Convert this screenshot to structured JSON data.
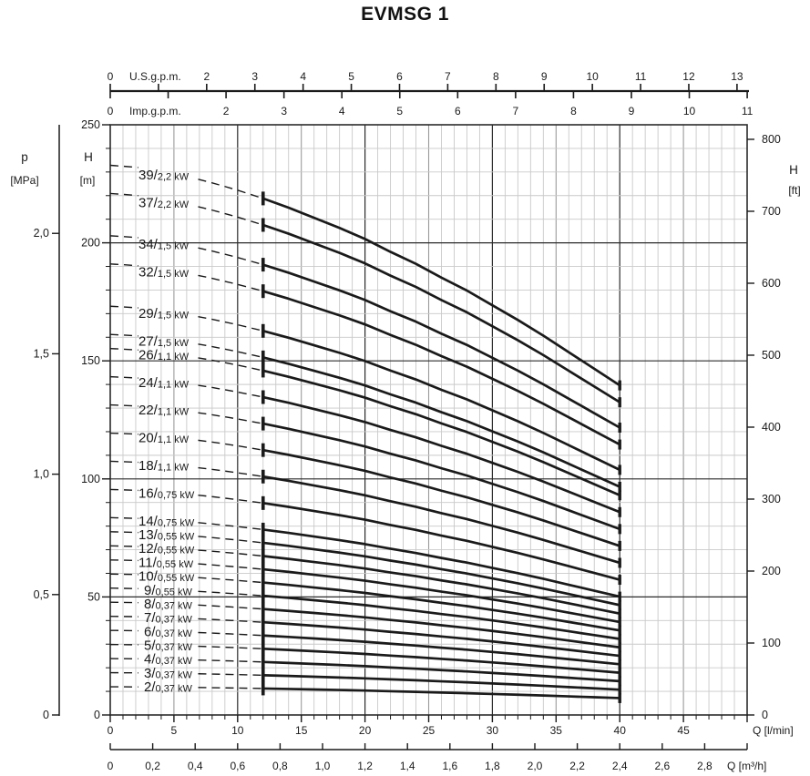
{
  "title": "EVMSG 1",
  "colors": {
    "ink": "#1a1a1a",
    "grid_minor": "#c9c9c9",
    "grid_mid": "#9a9a9a",
    "grid_major": "#2b2b2b",
    "background": "#ffffff"
  },
  "chart_data": {
    "type": "line",
    "title": "EVMSG 1",
    "description": "Multistage pump performance curves: head H versus flow Q for 25 pump sizes",
    "x_range_lmin": [
      0,
      50
    ],
    "y_range_m": [
      0,
      250
    ],
    "q_solid_range_lmin": [
      12,
      40
    ],
    "grid": {
      "x_minor_step": 1,
      "x_mid_step": 5,
      "x_major_step": 10,
      "y_minor_step": 10,
      "y_major_step": 50
    },
    "per_stage_head": {
      "q_lmin": [
        0,
        2,
        4,
        6,
        8,
        10,
        12,
        14,
        16,
        18,
        20,
        22,
        24,
        26,
        28,
        30,
        32,
        34,
        36,
        38,
        40
      ],
      "h_m": [
        5.97,
        5.95,
        5.91,
        5.85,
        5.78,
        5.7,
        5.61,
        5.51,
        5.4,
        5.29,
        5.17,
        5.03,
        4.9,
        4.75,
        4.61,
        4.45,
        4.29,
        4.12,
        3.94,
        3.76,
        3.58
      ]
    },
    "series": [
      {
        "stages": 39,
        "power": "2,2 kW"
      },
      {
        "stages": 37,
        "power": "2,2 kW"
      },
      {
        "stages": 34,
        "power": "1,5 kW"
      },
      {
        "stages": 32,
        "power": "1,5 kW"
      },
      {
        "stages": 29,
        "power": "1,5 kW"
      },
      {
        "stages": 27,
        "power": "1,5 kW"
      },
      {
        "stages": 26,
        "power": "1,1 kW"
      },
      {
        "stages": 24,
        "power": "1,1 kW"
      },
      {
        "stages": 22,
        "power": "1,1 kW"
      },
      {
        "stages": 20,
        "power": "1,1 kW"
      },
      {
        "stages": 18,
        "power": "1,1 kW"
      },
      {
        "stages": 16,
        "power": "0,75 kW"
      },
      {
        "stages": 14,
        "power": "0,75 kW"
      },
      {
        "stages": 13,
        "power": "0,55 kW"
      },
      {
        "stages": 12,
        "power": "0,55 kW"
      },
      {
        "stages": 11,
        "power": "0,55 kW"
      },
      {
        "stages": 10,
        "power": "0,55 kW"
      },
      {
        "stages": 9,
        "power": "0,55 kW"
      },
      {
        "stages": 8,
        "power": "0,37 kW"
      },
      {
        "stages": 7,
        "power": "0,37 kW"
      },
      {
        "stages": 6,
        "power": "0,37 kW"
      },
      {
        "stages": 5,
        "power": "0,37 kW"
      },
      {
        "stages": 4,
        "power": "0,37 kW"
      },
      {
        "stages": 3,
        "power": "0,37 kW"
      },
      {
        "stages": 2,
        "power": "0,37 kW"
      }
    ],
    "axes": {
      "us_gpm": {
        "name": "U.S.g.p.m.",
        "lmin_per_unit": 3.785,
        "ticks": [
          {
            "v": 0,
            "t": "0"
          },
          {
            "v": 1,
            "t": ""
          },
          {
            "v": 2,
            "t": "2"
          },
          {
            "v": 3,
            "t": "3"
          },
          {
            "v": 4,
            "t": "4"
          },
          {
            "v": 5,
            "t": "5"
          },
          {
            "v": 6,
            "t": "6"
          },
          {
            "v": 7,
            "t": "7"
          },
          {
            "v": 8,
            "t": "8"
          },
          {
            "v": 9,
            "t": "9"
          },
          {
            "v": 10,
            "t": "10"
          },
          {
            "v": 11,
            "t": "11"
          },
          {
            "v": 12,
            "t": "12"
          },
          {
            "v": 13,
            "t": "13"
          }
        ]
      },
      "imp_gpm": {
        "name": "Imp.g.p.m.",
        "lmin_per_unit": 4.546,
        "ticks": [
          {
            "v": 0,
            "t": "0"
          },
          {
            "v": 1,
            "t": ""
          },
          {
            "v": 2,
            "t": "2"
          },
          {
            "v": 3,
            "t": "3"
          },
          {
            "v": 4,
            "t": "4"
          },
          {
            "v": 5,
            "t": "5"
          },
          {
            "v": 6,
            "t": "6"
          },
          {
            "v": 7,
            "t": "7"
          },
          {
            "v": 8,
            "t": "8"
          },
          {
            "v": 9,
            "t": "9"
          },
          {
            "v": 10,
            "t": "10"
          },
          {
            "v": 11,
            "t": "11"
          }
        ]
      },
      "q_lmin": {
        "name": "Q [l/min]",
        "labels": [
          {
            "v": 0,
            "t": "0"
          },
          {
            "v": 5,
            "t": "5"
          },
          {
            "v": 10,
            "t": "10"
          },
          {
            "v": 15,
            "t": "15"
          },
          {
            "v": 20,
            "t": "20"
          },
          {
            "v": 25,
            "t": "25"
          },
          {
            "v": 30,
            "t": "30"
          },
          {
            "v": 35,
            "t": "35"
          },
          {
            "v": 40,
            "t": "40"
          },
          {
            "v": 45,
            "t": "45"
          }
        ]
      },
      "q_m3h": {
        "name": "Q [m³/h]",
        "lmin_per_unit": 16.6667,
        "ticks": [
          {
            "v": 0,
            "t": "0"
          },
          {
            "v": 0.2,
            "t": "0,2"
          },
          {
            "v": 0.4,
            "t": "0,4"
          },
          {
            "v": 0.6,
            "t": "0,6"
          },
          {
            "v": 0.8,
            "t": "0,8"
          },
          {
            "v": 1.0,
            "t": "1,0"
          },
          {
            "v": 1.2,
            "t": "1,2"
          },
          {
            "v": 1.4,
            "t": "1,4"
          },
          {
            "v": 1.6,
            "t": "1,6"
          },
          {
            "v": 1.8,
            "t": "1,8"
          },
          {
            "v": 2.0,
            "t": "2,0"
          },
          {
            "v": 2.2,
            "t": "2,2"
          },
          {
            "v": 2.4,
            "t": "2,4"
          },
          {
            "v": 2.6,
            "t": "2,6"
          },
          {
            "v": 2.8,
            "t": "2,8"
          },
          {
            "v": 3.0,
            "t": ""
          }
        ]
      },
      "h_m": {
        "name": "H",
        "unit": "[m]",
        "labels": [
          {
            "v": 0,
            "t": "0"
          },
          {
            "v": 50,
            "t": "50"
          },
          {
            "v": 100,
            "t": "100"
          },
          {
            "v": 150,
            "t": "150"
          },
          {
            "v": 200,
            "t": "200"
          },
          {
            "v": 250,
            "t": "250"
          }
        ]
      },
      "p_mpa": {
        "name": "p",
        "unit": "[MPa]",
        "m_per_unit": 102,
        "ticks": [
          {
            "m": 0,
            "t": "0"
          },
          {
            "m": 51,
            "t": "0,5"
          },
          {
            "m": 102,
            "t": "1,0"
          },
          {
            "m": 153,
            "t": "1,5"
          },
          {
            "m": 204,
            "t": "2,0"
          }
        ]
      },
      "h_ft": {
        "name": "H",
        "unit": "[ft]",
        "m_per_unit": 0.3048,
        "ticks": [
          {
            "v": 0,
            "t": "0"
          },
          {
            "v": 100,
            "t": "100"
          },
          {
            "v": 200,
            "t": "200"
          },
          {
            "v": 300,
            "t": "300"
          },
          {
            "v": 400,
            "t": "400"
          },
          {
            "v": 500,
            "t": "500"
          },
          {
            "v": 600,
            "t": "600"
          },
          {
            "v": 700,
            "t": "700"
          },
          {
            "v": 800,
            "t": "800"
          }
        ]
      }
    }
  }
}
